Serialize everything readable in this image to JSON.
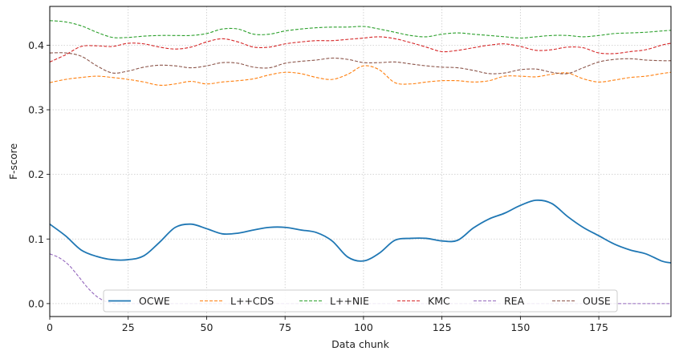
{
  "chart_data": {
    "type": "line",
    "xlabel": "Data chunk",
    "ylabel": "F-score",
    "xlim": [
      0,
      198
    ],
    "ylim": [
      -0.02,
      0.46
    ],
    "xticks": [
      0,
      25,
      50,
      75,
      100,
      125,
      150,
      175
    ],
    "yticks": [
      0.0,
      0.1,
      0.2,
      0.3,
      0.4
    ],
    "ytick_labels": [
      "0.0",
      "0.1",
      "0.2",
      "0.3",
      "0.4"
    ],
    "grid": true,
    "legend_position": "lower-center",
    "series": [
      {
        "name": "OCWE",
        "color": "#1f77b4",
        "dash": "solid",
        "x": [
          0,
          5,
          10,
          15,
          20,
          25,
          30,
          35,
          40,
          45,
          50,
          55,
          60,
          65,
          70,
          75,
          80,
          85,
          90,
          95,
          100,
          105,
          110,
          115,
          120,
          125,
          130,
          135,
          140,
          145,
          150,
          155,
          160,
          165,
          170,
          175,
          180,
          185,
          190,
          195,
          198
        ],
        "y": [
          0.123,
          0.105,
          0.083,
          0.073,
          0.068,
          0.068,
          0.074,
          0.095,
          0.118,
          0.123,
          0.116,
          0.108,
          0.109,
          0.114,
          0.118,
          0.118,
          0.114,
          0.11,
          0.097,
          0.072,
          0.066,
          0.078,
          0.098,
          0.101,
          0.101,
          0.097,
          0.098,
          0.117,
          0.131,
          0.14,
          0.152,
          0.16,
          0.155,
          0.135,
          0.118,
          0.105,
          0.092,
          0.083,
          0.077,
          0.066,
          0.063
        ]
      },
      {
        "name": "L++CDS",
        "color": "#ff7f0e",
        "dash": "dashed",
        "x": [
          0,
          5,
          10,
          15,
          20,
          25,
          30,
          35,
          40,
          45,
          50,
          55,
          60,
          65,
          70,
          75,
          80,
          85,
          90,
          95,
          100,
          105,
          110,
          115,
          120,
          125,
          130,
          135,
          140,
          145,
          150,
          155,
          160,
          165,
          170,
          175,
          180,
          185,
          190,
          195,
          198
        ],
        "y": [
          0.342,
          0.347,
          0.35,
          0.352,
          0.35,
          0.347,
          0.343,
          0.338,
          0.34,
          0.344,
          0.34,
          0.343,
          0.345,
          0.348,
          0.354,
          0.358,
          0.356,
          0.35,
          0.347,
          0.355,
          0.368,
          0.362,
          0.342,
          0.34,
          0.343,
          0.345,
          0.345,
          0.343,
          0.345,
          0.352,
          0.352,
          0.351,
          0.355,
          0.357,
          0.348,
          0.343,
          0.346,
          0.35,
          0.352,
          0.356,
          0.358
        ]
      },
      {
        "name": "L++NIE",
        "color": "#2ca02c",
        "dash": "dashed",
        "x": [
          0,
          5,
          10,
          15,
          20,
          25,
          30,
          35,
          40,
          45,
          50,
          55,
          60,
          65,
          70,
          75,
          80,
          85,
          90,
          95,
          100,
          105,
          110,
          115,
          120,
          125,
          130,
          135,
          140,
          145,
          150,
          155,
          160,
          165,
          170,
          175,
          180,
          185,
          190,
          195,
          198
        ],
        "y": [
          0.438,
          0.436,
          0.43,
          0.42,
          0.412,
          0.412,
          0.414,
          0.415,
          0.415,
          0.415,
          0.418,
          0.425,
          0.425,
          0.417,
          0.417,
          0.422,
          0.425,
          0.427,
          0.428,
          0.428,
          0.429,
          0.425,
          0.42,
          0.415,
          0.413,
          0.417,
          0.419,
          0.417,
          0.415,
          0.413,
          0.411,
          0.413,
          0.415,
          0.415,
          0.413,
          0.415,
          0.418,
          0.419,
          0.42,
          0.422,
          0.423
        ]
      },
      {
        "name": "KMC",
        "color": "#d62728",
        "dash": "dashed",
        "x": [
          0,
          5,
          10,
          15,
          20,
          25,
          30,
          35,
          40,
          45,
          50,
          55,
          60,
          65,
          70,
          75,
          80,
          85,
          90,
          95,
          100,
          105,
          110,
          115,
          120,
          125,
          130,
          135,
          140,
          145,
          150,
          155,
          160,
          165,
          170,
          175,
          180,
          185,
          190,
          195,
          198
        ],
        "y": [
          0.374,
          0.385,
          0.398,
          0.399,
          0.398,
          0.403,
          0.402,
          0.397,
          0.394,
          0.397,
          0.405,
          0.41,
          0.405,
          0.397,
          0.397,
          0.402,
          0.405,
          0.407,
          0.407,
          0.409,
          0.411,
          0.413,
          0.41,
          0.404,
          0.397,
          0.39,
          0.392,
          0.396,
          0.4,
          0.402,
          0.398,
          0.392,
          0.393,
          0.397,
          0.396,
          0.388,
          0.387,
          0.39,
          0.393,
          0.4,
          0.403
        ]
      },
      {
        "name": "REA",
        "color": "#9467bd",
        "dash": "dashed",
        "x": [
          0,
          3,
          6,
          9,
          12,
          15,
          18,
          21,
          24,
          27,
          30,
          40,
          60,
          80,
          100,
          120,
          140,
          160,
          180,
          198
        ],
        "y": [
          0.077,
          0.071,
          0.06,
          0.043,
          0.025,
          0.011,
          0.003,
          0.0,
          0.0,
          0.0,
          0.0,
          0.0,
          0.0,
          0.0,
          0.0,
          0.0,
          0.0,
          0.0,
          0.0,
          0.0
        ]
      },
      {
        "name": "OUSE",
        "color": "#8c564b",
        "dash": "dashed",
        "x": [
          0,
          5,
          10,
          15,
          20,
          25,
          30,
          35,
          40,
          45,
          50,
          55,
          60,
          65,
          70,
          75,
          80,
          85,
          90,
          95,
          100,
          105,
          110,
          115,
          120,
          125,
          130,
          135,
          140,
          145,
          150,
          155,
          160,
          165,
          170,
          175,
          180,
          185,
          190,
          195,
          198
        ],
        "y": [
          0.388,
          0.388,
          0.383,
          0.368,
          0.357,
          0.36,
          0.366,
          0.369,
          0.368,
          0.365,
          0.368,
          0.373,
          0.372,
          0.366,
          0.365,
          0.372,
          0.375,
          0.377,
          0.38,
          0.378,
          0.373,
          0.373,
          0.374,
          0.371,
          0.368,
          0.366,
          0.365,
          0.361,
          0.356,
          0.357,
          0.362,
          0.363,
          0.358,
          0.356,
          0.365,
          0.374,
          0.378,
          0.379,
          0.377,
          0.376,
          0.376
        ]
      }
    ]
  }
}
